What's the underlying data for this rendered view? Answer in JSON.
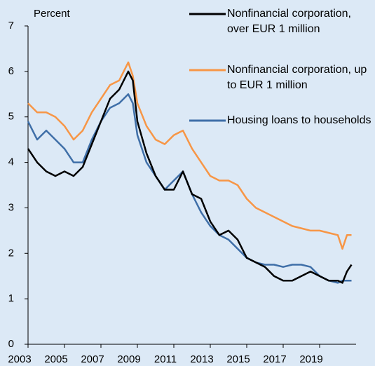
{
  "chart_data": {
    "type": "line",
    "y_label": "Percent",
    "x": [
      2003,
      2003.5,
      2004,
      2004.5,
      2005,
      2005.5,
      2006,
      2006.5,
      2007,
      2007.5,
      2008,
      2008.5,
      2008.75,
      2009,
      2009.5,
      2010,
      2010.5,
      2011,
      2011.5,
      2012,
      2012.5,
      2013,
      2013.5,
      2014,
      2014.5,
      2015,
      2015.5,
      2016,
      2016.5,
      2017,
      2017.5,
      2018,
      2018.5,
      2019,
      2019.5,
      2020,
      2020.25,
      2020.5,
      2020.75
    ],
    "series": [
      {
        "name": "Nonfinancial corporation, over EUR 1 million",
        "color": "#000000",
        "values": [
          4.3,
          4.0,
          3.8,
          3.7,
          3.8,
          3.7,
          3.9,
          4.4,
          4.9,
          5.4,
          5.6,
          6.0,
          5.8,
          4.9,
          4.2,
          3.7,
          3.4,
          3.4,
          3.8,
          3.3,
          3.2,
          2.7,
          2.4,
          2.5,
          2.3,
          1.9,
          1.8,
          1.7,
          1.5,
          1.4,
          1.4,
          1.5,
          1.6,
          1.5,
          1.4,
          1.4,
          1.35,
          1.6,
          1.75
        ]
      },
      {
        "name": "Nonfinancial corporation, up to EUR 1 million",
        "color": "#f79646",
        "values": [
          5.3,
          5.1,
          5.1,
          5.0,
          4.8,
          4.5,
          4.7,
          5.1,
          5.4,
          5.7,
          5.8,
          6.2,
          5.9,
          5.3,
          4.8,
          4.5,
          4.4,
          4.6,
          4.7,
          4.3,
          4.0,
          3.7,
          3.6,
          3.6,
          3.5,
          3.2,
          3.0,
          2.9,
          2.8,
          2.7,
          2.6,
          2.55,
          2.5,
          2.5,
          2.45,
          2.4,
          2.1,
          2.4,
          2.4
        ]
      },
      {
        "name": "Housing loans to households",
        "color": "#3f6fa8",
        "values": [
          4.9,
          4.5,
          4.7,
          4.5,
          4.3,
          4.0,
          4.0,
          4.5,
          4.9,
          5.2,
          5.3,
          5.5,
          5.3,
          4.6,
          4.0,
          3.7,
          3.4,
          3.6,
          3.8,
          3.3,
          2.9,
          2.6,
          2.4,
          2.3,
          2.1,
          1.9,
          1.8,
          1.75,
          1.75,
          1.7,
          1.75,
          1.75,
          1.7,
          1.5,
          1.4,
          1.35,
          1.4,
          1.4,
          1.4
        ]
      }
    ],
    "xlim": [
      2003,
      2021
    ],
    "xticks": [
      2003,
      2005,
      2007,
      2009,
      2011,
      2013,
      2015,
      2017,
      2019
    ],
    "ylim": [
      0,
      7
    ],
    "yticks": [
      0,
      1,
      2,
      3,
      4,
      5,
      6,
      7
    ],
    "legend": "top-right"
  }
}
